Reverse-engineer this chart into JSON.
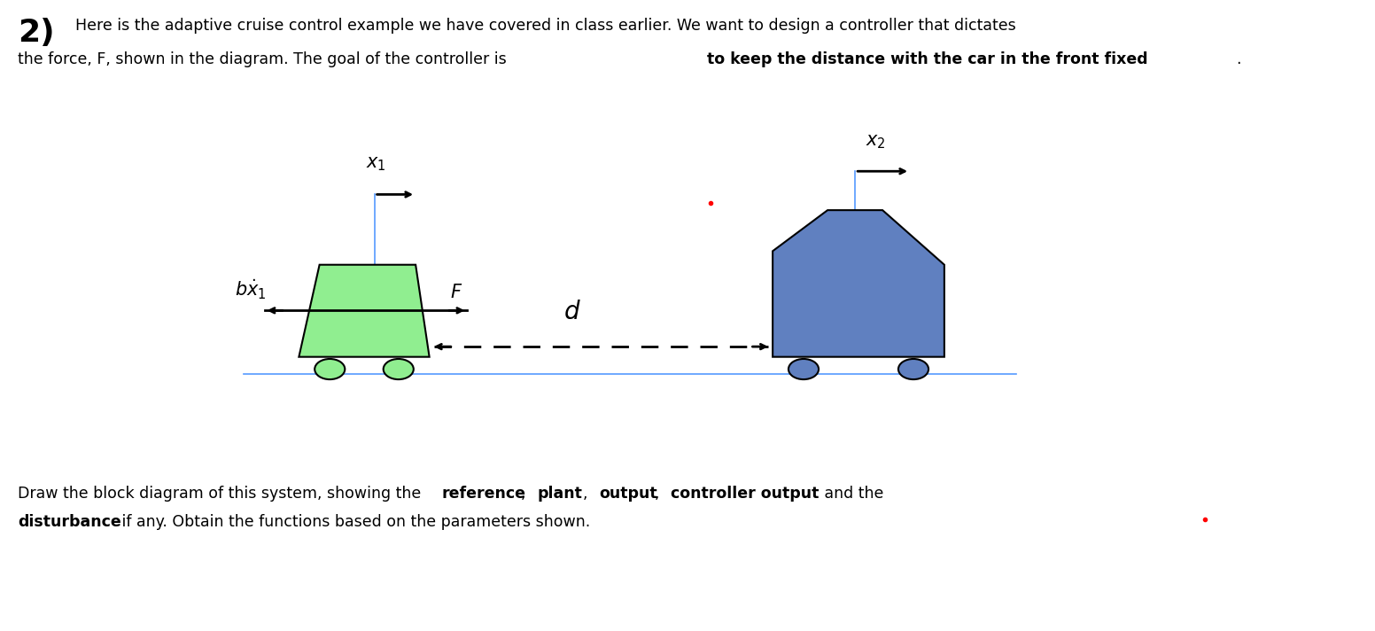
{
  "fig_width": 15.52,
  "fig_height": 7.12,
  "bg_color": "#ffffff",
  "title_number": "2)",
  "title_number_fontsize": 26,
  "header_text_line1": "Here is the adaptive cruise control example we have covered in class earlier. We want to design a controller that dictates",
  "header_text_line2": "the force, F, shown in the diagram. The goal of the controller is ",
  "header_text_bold": "to keep the distance with the car in the front fixed",
  "header_text_end": ".",
  "header_fontsize": 12.5,
  "footer_line1_normal": "Draw the block diagram of this system, showing the ",
  "footer_bold_1": "reference",
  "footer_comma1": ", ",
  "footer_bold_2": "plant",
  "footer_comma2": ", ",
  "footer_bold_3": "output",
  "footer_comma3": ", ",
  "footer_bold_4": "controller output",
  "footer_normal_2": " and the",
  "footer_line2_bold": "disturbance",
  "footer_line2_normal": " if any. Obtain the functions based on the parameters shown.",
  "footer_fontsize": 12.5,
  "green_car_color": "#90EE90",
  "green_car_edge": "#000000",
  "blue_car_color": "#6080C0",
  "blue_car_edge": "#000000",
  "wheel_green_color": "#90EE90",
  "wheel_blue_color": "#6080C0",
  "ground_line_color": "#5599FF",
  "x1_line_color": "#5599FF",
  "x2_line_color": "#5599FF",
  "red_dot_color": "#FF0000"
}
